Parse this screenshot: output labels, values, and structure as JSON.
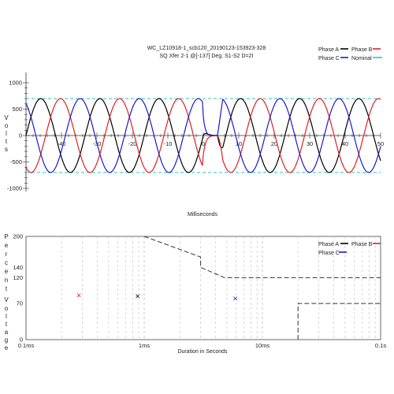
{
  "chart_data": [
    {
      "type": "line",
      "title": "WC_LZ10918-1_scb120_20190123-153923-328",
      "subtitle": "SQ Xfer 2-1 @[-137] Deg. S1-S2 D=2I",
      "xlabel": "Milliseconds",
      "ylabel": "Volts",
      "xlim": [
        -50,
        50
      ],
      "ylim": [
        -1000,
        1000
      ],
      "x_ticks": [
        "-40",
        "-30",
        "-20",
        "-10",
        "0",
        "10",
        "20",
        "30",
        "40",
        "50"
      ],
      "y_ticks": [
        "1000",
        "500",
        "0",
        "-500",
        "-1000"
      ],
      "grid": false,
      "legend_position": "top-right",
      "nominal_levels": [
        700,
        -700
      ],
      "series": [
        {
          "name": "Phase A",
          "color": "#000000",
          "amplitude": 700,
          "frequency_hz": 60,
          "phase_deg": 0,
          "transfer_ms": [
            0,
            4
          ],
          "phase_after_deg": -137
        },
        {
          "name": "Phase B",
          "color": "#e02020",
          "amplitude": 700,
          "frequency_hz": 60,
          "phase_deg": -120,
          "transfer_ms": [
            0,
            4
          ],
          "phase_after_deg": -257
        },
        {
          "name": "Phase C",
          "color": "#1a1acc",
          "amplitude": 700,
          "frequency_hz": 60,
          "phase_deg": 120,
          "transfer_ms": [
            0,
            4
          ],
          "phase_after_deg": -17
        },
        {
          "name": "Nominal",
          "color": "#2ec4c4",
          "style": "dashed",
          "values": [
            700,
            -700
          ]
        }
      ]
    },
    {
      "type": "scatter",
      "xlabel": "Duration in Seconds",
      "ylabel": "Percent Voltage",
      "x_scale": "log",
      "xlim": [
        0.0001,
        0.1
      ],
      "ylim": [
        0,
        200
      ],
      "x_ticks": [
        "0.1ms",
        "1ms",
        "10ms",
        "0.1s"
      ],
      "y_ticks": [
        "200",
        "140",
        "120",
        "70",
        "0"
      ],
      "legend_position": "top-right",
      "grid": true,
      "series": [
        {
          "name": "Phase A",
          "color": "#000000",
          "points": [
            [
              0.00088,
              85
            ]
          ]
        },
        {
          "name": "Phase B",
          "color": "#e02020",
          "points": [
            [
              0.00028,
              86
            ]
          ]
        },
        {
          "name": "Phase C",
          "color": "#1a1acc",
          "points": [
            [
              0.0059,
              80
            ]
          ]
        }
      ],
      "curves": [
        {
          "name": "upper_limit",
          "points": [
            [
              0.001,
              200
            ],
            [
              0.003,
              160
            ],
            [
              0.003,
              140
            ],
            [
              0.0048,
              120
            ],
            [
              0.1,
              120
            ]
          ]
        },
        {
          "name": "lower_limit",
          "points": [
            [
              0.02,
              0
            ],
            [
              0.02,
              70
            ],
            [
              0.1,
              70
            ]
          ]
        }
      ]
    }
  ]
}
